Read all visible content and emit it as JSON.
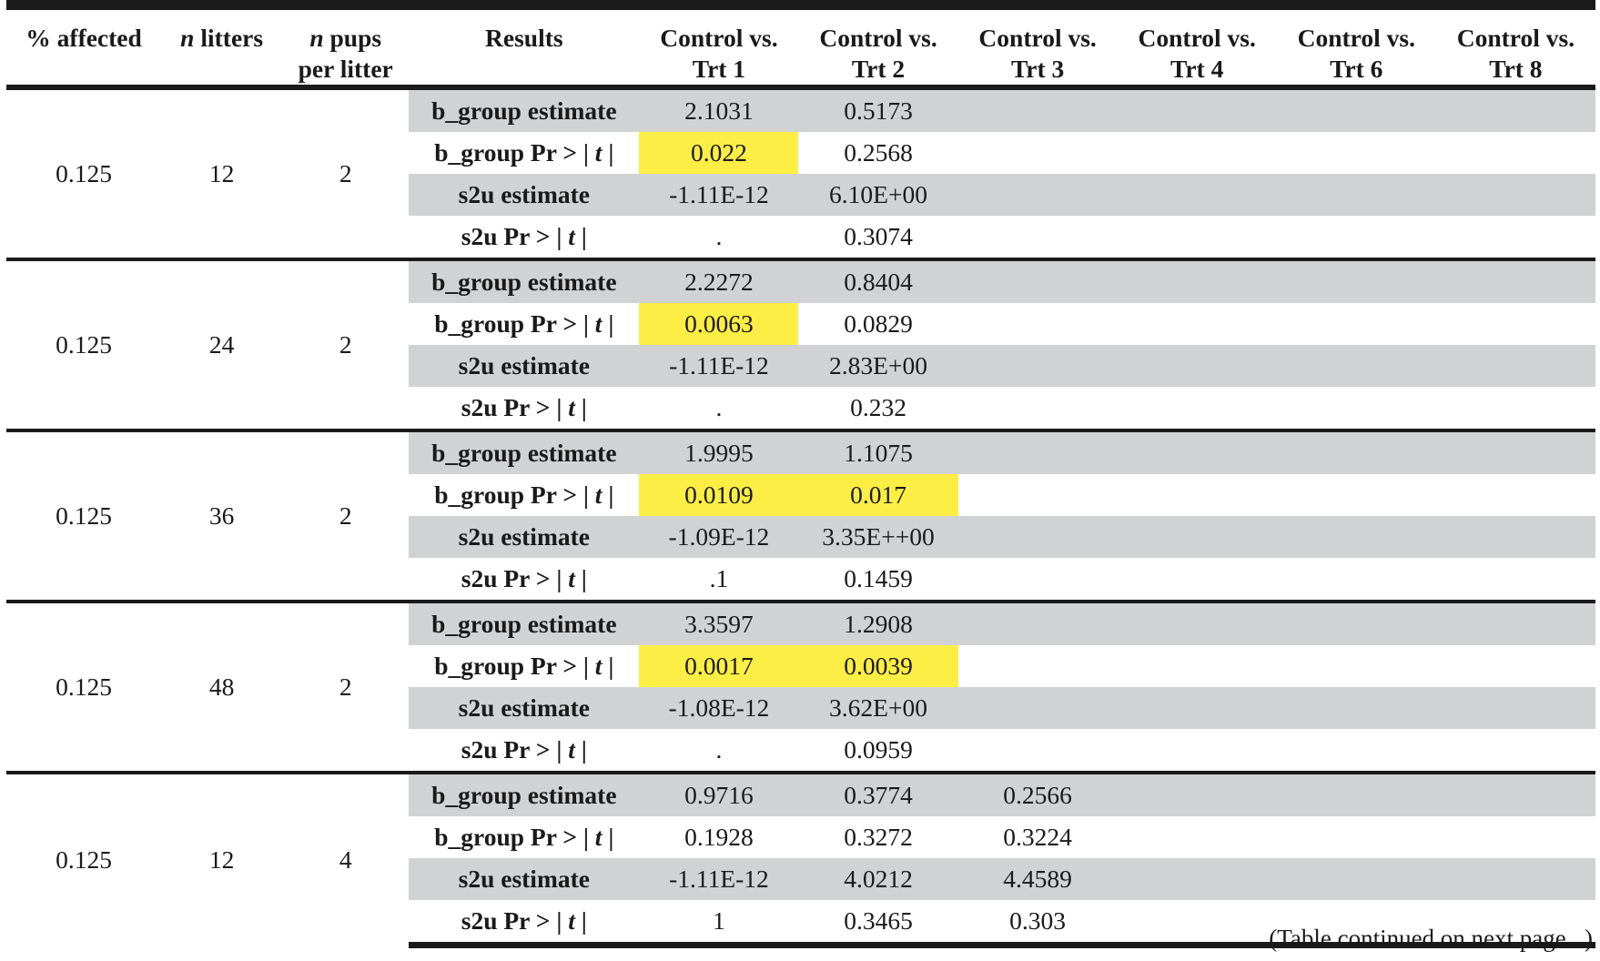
{
  "header": {
    "affected": "% affected",
    "litters_prefix": "n",
    "litters_suffix": " litters",
    "pups_prefix": "n",
    "pups_suffix": " pups",
    "pups_line2": "per litter",
    "results": "Results",
    "comparisons": [
      {
        "line1": "Control vs.",
        "line2": "Trt 1"
      },
      {
        "line1": "Control vs.",
        "line2": "Trt 2"
      },
      {
        "line1": "Control vs.",
        "line2": "Trt 3"
      },
      {
        "line1": "Control vs.",
        "line2": "Trt 4"
      },
      {
        "line1": "Control vs.",
        "line2": "Trt 6"
      },
      {
        "line1": "Control vs.",
        "line2": "Trt 8"
      }
    ]
  },
  "labels": {
    "b_est": "b_group estimate",
    "b_pr_prefix": "b_group Pr > | ",
    "s2u_est": "s2u estimate",
    "s2u_pr_prefix": "s2u Pr > | ",
    "t": "t",
    "pr_suffix": " |"
  },
  "highlight_color": "#fcee44",
  "shade_color": "#d1d2d4",
  "groups": [
    {
      "affected": "0.125",
      "litters": "12",
      "pups": "2",
      "rows": [
        [
          "2.1031",
          "0.5173",
          "",
          "",
          "",
          ""
        ],
        [
          "0.022",
          "0.2568",
          "",
          "",
          "",
          ""
        ],
        [
          "-1.11E-12",
          "6.10E+00",
          "",
          "",
          "",
          ""
        ],
        [
          ".",
          "0.3074",
          "",
          "",
          "",
          ""
        ]
      ]
    },
    {
      "affected": "0.125",
      "litters": "24",
      "pups": "2",
      "rows": [
        [
          "2.2272",
          "0.8404",
          "",
          "",
          "",
          ""
        ],
        [
          "0.0063",
          "0.0829",
          "",
          "",
          "",
          ""
        ],
        [
          "-1.11E-12",
          "2.83E+00",
          "",
          "",
          "",
          ""
        ],
        [
          ".",
          "0.232",
          "",
          "",
          "",
          ""
        ]
      ]
    },
    {
      "affected": "0.125",
      "litters": "36",
      "pups": "2",
      "rows": [
        [
          "1.9995",
          "1.1075",
          "",
          "",
          "",
          ""
        ],
        [
          "0.0109",
          "0.017",
          "",
          "",
          "",
          ""
        ],
        [
          "-1.09E-12",
          "3.35E++00",
          "",
          "",
          "",
          ""
        ],
        [
          ".1",
          "0.1459",
          "",
          "",
          "",
          ""
        ]
      ]
    },
    {
      "affected": "0.125",
      "litters": "48",
      "pups": "2",
      "rows": [
        [
          "3.3597",
          "1.2908",
          "",
          "",
          "",
          ""
        ],
        [
          "0.0017",
          "0.0039",
          "",
          "",
          "",
          ""
        ],
        [
          "-1.08E-12",
          "3.62E+00",
          "",
          "",
          "",
          ""
        ],
        [
          ".",
          "0.0959",
          "",
          "",
          "",
          ""
        ]
      ]
    },
    {
      "affected": "0.125",
      "litters": "12",
      "pups": "4",
      "rows": [
        [
          "0.9716",
          "0.3774",
          "0.2566",
          "",
          "",
          ""
        ],
        [
          "0.1928",
          "0.3272",
          "0.3224",
          "",
          "",
          ""
        ],
        [
          "-1.11E-12",
          "4.0212",
          "4.4589",
          "",
          "",
          ""
        ],
        [
          "1",
          "0.3465",
          "0.303",
          "",
          "",
          ""
        ]
      ]
    }
  ],
  "continuation_note": "(Table continued on next page...)"
}
